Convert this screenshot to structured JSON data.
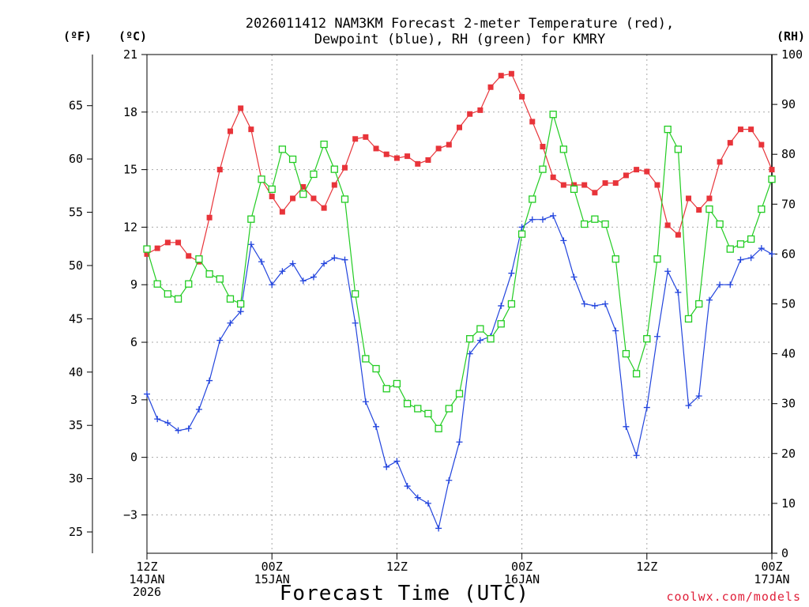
{
  "chart_data": {
    "type": "line",
    "title_line1": "2026011412 NAM3KM Forecast 2-meter Temperature (red),",
    "title_line2": "Dewpoint (blue), RH (green) for KMRY",
    "xlabel": "Forecast Time (UTC)",
    "credit": "coolwx.com/models",
    "unit_f": "(ºF)",
    "unit_c": "(ºC)",
    "unit_rh": "(RH)",
    "x_range_hours": [
      0,
      60
    ],
    "x_ticks": [
      {
        "hour": 0,
        "l1": "12Z",
        "l2": "14JAN",
        "l3": "2026"
      },
      {
        "hour": 12,
        "l1": "00Z",
        "l2": "15JAN",
        "l3": ""
      },
      {
        "hour": 24,
        "l1": "12Z",
        "l2": "",
        "l3": ""
      },
      {
        "hour": 36,
        "l1": "00Z",
        "l2": "16JAN",
        "l3": ""
      },
      {
        "hour": 48,
        "l1": "12Z",
        "l2": "",
        "l3": ""
      },
      {
        "hour": 60,
        "l1": "00Z",
        "l2": "17JAN",
        "l3": ""
      }
    ],
    "y_celsius_range": [
      -5.0,
      21.0
    ],
    "y_celsius_ticks": [
      21,
      18,
      15,
      12,
      9,
      6,
      3,
      0,
      -3
    ],
    "y_celsius_tick_labels": [
      "21",
      "18",
      "15",
      "12",
      "9",
      "6",
      "3",
      "0",
      "−3"
    ],
    "y_fahrenheit_ticks": [
      65,
      60,
      55,
      50,
      45,
      40,
      35,
      30,
      25
    ],
    "y_rh_range": [
      0,
      100
    ],
    "y_rh_ticks": [
      100,
      90,
      80,
      70,
      60,
      50,
      40,
      30,
      20,
      10,
      0
    ],
    "hours": [
      0,
      1,
      2,
      3,
      4,
      5,
      6,
      7,
      8,
      9,
      10,
      11,
      12,
      13,
      14,
      15,
      16,
      17,
      18,
      19,
      20,
      21,
      22,
      23,
      24,
      25,
      26,
      27,
      28,
      29,
      30,
      31,
      32,
      33,
      34,
      35,
      36,
      37,
      38,
      39,
      40,
      41,
      42,
      43,
      44,
      45,
      46,
      47,
      48,
      49,
      50,
      51,
      52,
      53,
      54,
      55,
      56,
      57,
      58,
      59,
      60
    ],
    "series": [
      {
        "name": "Temperature",
        "unit": "C",
        "color": "#e8343a",
        "marker": "filled-square",
        "values": [
          10.6,
          10.9,
          11.2,
          11.2,
          10.5,
          10.2,
          12.5,
          15.0,
          17.0,
          18.2,
          17.1,
          14.5,
          13.6,
          12.8,
          13.5,
          14.1,
          13.5,
          13.0,
          14.2,
          15.1,
          16.6,
          16.7,
          16.1,
          15.8,
          15.6,
          15.7,
          15.3,
          15.5,
          16.1,
          16.3,
          17.2,
          17.9,
          18.1,
          19.3,
          19.9,
          20.0,
          18.8,
          17.5,
          16.2,
          14.6,
          14.2,
          14.2,
          14.2,
          13.8,
          14.3,
          14.3,
          14.7,
          15.0,
          14.9,
          14.2,
          12.1,
          11.6,
          13.5,
          12.9,
          13.5,
          15.4,
          16.4,
          17.1,
          17.1,
          16.3,
          15.0
        ]
      },
      {
        "name": "Dewpoint",
        "unit": "C",
        "color": "#2244dd",
        "marker": "plus",
        "values": [
          3.3,
          2.0,
          1.8,
          1.4,
          1.5,
          2.5,
          4.0,
          6.1,
          7.0,
          7.6,
          11.1,
          10.2,
          9.0,
          9.7,
          10.1,
          9.2,
          9.4,
          10.1,
          10.4,
          10.3,
          7.0,
          2.9,
          1.6,
          -0.5,
          -0.2,
          -1.5,
          -2.1,
          -2.4,
          -3.7,
          -1.2,
          0.8,
          5.4,
          6.1,
          6.3,
          7.9,
          9.6,
          12.0,
          12.4,
          12.4,
          12.6,
          11.3,
          9.4,
          8.0,
          7.9,
          8.0,
          6.6,
          1.6,
          0.1,
          2.6,
          6.3,
          9.7,
          8.6,
          2.7,
          3.2,
          8.2,
          9.0,
          9.0,
          10.3,
          10.4,
          10.9,
          10.6
        ]
      },
      {
        "name": "RH",
        "unit": "%",
        "color": "#22cc22",
        "marker": "open-square",
        "values": [
          61,
          54,
          52,
          51,
          54,
          59,
          56,
          55,
          51,
          50,
          67,
          75,
          73,
          81,
          79,
          72,
          76,
          82,
          77,
          71,
          52,
          39,
          37,
          33,
          34,
          30,
          29,
          28,
          25,
          29,
          32,
          43,
          45,
          43,
          46,
          50,
          64,
          71,
          77,
          88,
          81,
          73,
          66,
          67,
          66,
          59,
          40,
          36,
          43,
          59,
          85,
          81,
          47,
          50,
          69,
          66,
          61,
          62,
          63,
          69,
          75
        ]
      }
    ]
  }
}
